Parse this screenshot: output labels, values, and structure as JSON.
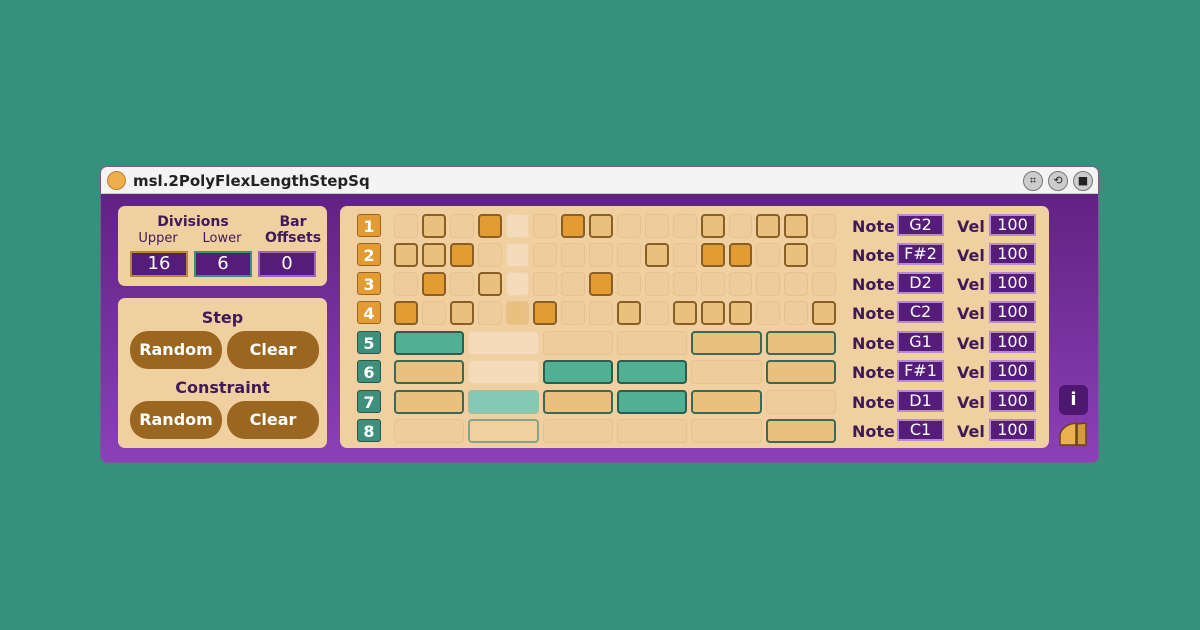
{
  "window": {
    "title": "msl.2PolyFlexLengthStepSq",
    "buttons": [
      {
        "icon": "fit-icon",
        "glyph": "⌗"
      },
      {
        "icon": "refresh-icon",
        "glyph": "⟲"
      },
      {
        "icon": "save-icon",
        "glyph": "■"
      }
    ]
  },
  "divisions": {
    "title": "Divisions",
    "upper_label": "Upper",
    "lower_label": "Lower",
    "upper": "16",
    "lower": "6",
    "offsets_label1": "Bar",
    "offsets_label2": "Offsets",
    "offsets": "0"
  },
  "step": {
    "title": "Step",
    "random": "Random",
    "clear": "Clear"
  },
  "constraint": {
    "title": "Constraint",
    "random": "Random",
    "clear": "Clear"
  },
  "colors": {
    "accent_orange": "#e39c34",
    "accent_teal": "#4fb094",
    "purple": "#561c7a"
  },
  "rows": [
    {
      "label": "1",
      "note": "G2",
      "vel": "100",
      "cells": [
        0,
        1,
        0,
        2,
        0,
        0,
        2,
        1,
        0,
        0,
        0,
        1,
        0,
        1,
        1,
        0
      ]
    },
    {
      "label": "2",
      "note": "F#2",
      "vel": "100",
      "cells": [
        1,
        1,
        2,
        0,
        0,
        0,
        0,
        0,
        0,
        1,
        0,
        2,
        2,
        0,
        1,
        0
      ]
    },
    {
      "label": "3",
      "note": "D2",
      "vel": "100",
      "cells": [
        0,
        2,
        0,
        1,
        0,
        0,
        0,
        2,
        0,
        0,
        0,
        0,
        0,
        0,
        0,
        0
      ]
    },
    {
      "label": "4",
      "note": "C2",
      "vel": "100",
      "cells": [
        2,
        0,
        1,
        0,
        1,
        2,
        0,
        0,
        1,
        0,
        1,
        1,
        1,
        0,
        0,
        1
      ]
    },
    {
      "label": "5",
      "note": "G1",
      "vel": "100",
      "cells": [
        2,
        0,
        0,
        0,
        1,
        1
      ]
    },
    {
      "label": "6",
      "note": "F#1",
      "vel": "100",
      "cells": [
        1,
        0,
        2,
        2,
        0,
        1
      ]
    },
    {
      "label": "7",
      "note": "D1",
      "vel": "100",
      "cells": [
        1,
        2,
        1,
        2,
        1,
        0
      ]
    },
    {
      "label": "8",
      "note": "C1",
      "vel": "100",
      "cells": [
        0,
        1,
        0,
        0,
        0,
        1
      ]
    }
  ],
  "playhead": {
    "upper_step": 5,
    "lower_step": 2
  },
  "labels": {
    "note": "Note",
    "vel": "Vel",
    "info": "i"
  }
}
